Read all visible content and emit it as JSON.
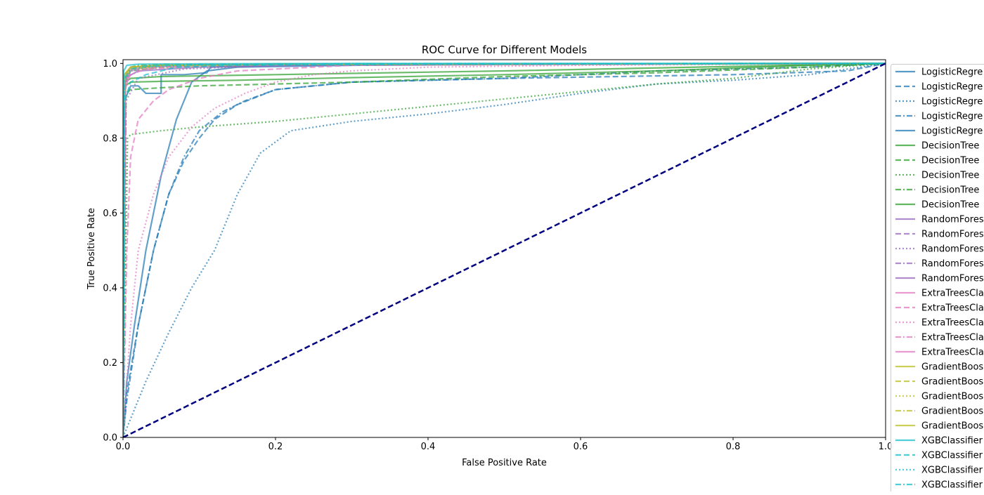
{
  "chart_data": {
    "type": "line",
    "title": "ROC Curve for Different Models",
    "xlabel": "False Positive Rate",
    "ylabel": "True Positive Rate",
    "xlim": [
      0,
      1
    ],
    "ylim": [
      0,
      1.01
    ],
    "xticks": [
      "0.0",
      "0.2",
      "0.4",
      "0.6",
      "0.8",
      "1.0"
    ],
    "yticks": [
      "0.0",
      "0.2",
      "0.4",
      "0.6",
      "0.8",
      "1.0"
    ],
    "grid": false,
    "legend_position": "outside-right",
    "colors": {
      "LogisticRegression": "#1f77b4",
      "DecisionTree": "#2ca02c",
      "RandomForest": "#9467bd",
      "ExtraTrees": "#e377c2",
      "GradientBoosting": "#bcbd22",
      "XGBClassifier": "#17becf",
      "diagonal": "#000080"
    },
    "diagonal": {
      "x": [
        0,
        1
      ],
      "y": [
        0,
        1
      ],
      "style": "dashed"
    },
    "series": [
      {
        "legend": "LogisticRegre",
        "model": "LogisticRegression",
        "style": "solid",
        "x": [
          0,
          0.005,
          0.015,
          0.03,
          0.05,
          0.07,
          0.09,
          0.11,
          0.15,
          0.3,
          0.6,
          1.0
        ],
        "y": [
          0,
          0.15,
          0.3,
          0.5,
          0.7,
          0.85,
          0.95,
          0.98,
          0.99,
          0.995,
          0.998,
          1.0
        ]
      },
      {
        "legend": "LogisticRegre",
        "model": "LogisticRegression",
        "style": "dashed",
        "x": [
          0,
          0.005,
          0.02,
          0.04,
          0.06,
          0.08,
          0.1,
          0.12,
          0.15,
          0.2,
          0.3,
          0.5,
          0.8,
          0.95,
          1.0
        ],
        "y": [
          0,
          0.12,
          0.3,
          0.5,
          0.65,
          0.74,
          0.8,
          0.85,
          0.89,
          0.93,
          0.95,
          0.96,
          0.97,
          0.98,
          1.0
        ]
      },
      {
        "legend": "LogisticRegre",
        "model": "LogisticRegression",
        "style": "dotted",
        "x": [
          0,
          0.01,
          0.03,
          0.06,
          0.09,
          0.12,
          0.15,
          0.18,
          0.22,
          0.3,
          0.4,
          0.5,
          0.6,
          0.7,
          0.8,
          0.9,
          1.0
        ],
        "y": [
          0,
          0.05,
          0.15,
          0.28,
          0.4,
          0.5,
          0.65,
          0.76,
          0.82,
          0.845,
          0.865,
          0.89,
          0.92,
          0.945,
          0.955,
          0.97,
          1.0
        ]
      },
      {
        "legend": "LogisticRegre",
        "model": "LogisticRegression",
        "style": "dashdot",
        "x": [
          0,
          0.005,
          0.02,
          0.04,
          0.06,
          0.08,
          0.1,
          0.13,
          0.16,
          0.2,
          0.3,
          0.5,
          0.7,
          0.9,
          1.0
        ],
        "y": [
          0,
          0.1,
          0.3,
          0.5,
          0.65,
          0.75,
          0.82,
          0.87,
          0.9,
          0.93,
          0.95,
          0.96,
          0.98,
          0.99,
          1.0
        ]
      },
      {
        "legend": "LogisticRegre",
        "model": "LogisticRegression",
        "style": "solid",
        "x": [
          0,
          0.002,
          0.01,
          0.02,
          0.03,
          0.05,
          0.05,
          0.08,
          0.11,
          0.115,
          0.2,
          0.5,
          1.0
        ],
        "y": [
          0,
          0.9,
          0.94,
          0.94,
          0.92,
          0.92,
          0.97,
          0.97,
          0.975,
          0.99,
          0.995,
          0.998,
          1.0
        ]
      },
      {
        "legend": "DecisionTree",
        "model": "DecisionTree",
        "style": "solid",
        "x": [
          0,
          0.003,
          0.01,
          0.05,
          0.15,
          0.3,
          0.5,
          0.7,
          0.9,
          1.0
        ],
        "y": [
          0,
          0.94,
          0.95,
          0.952,
          0.955,
          0.962,
          0.97,
          0.98,
          0.995,
          1.0
        ]
      },
      {
        "legend": "DecisionTree",
        "model": "DecisionTree",
        "style": "dashed",
        "x": [
          0,
          0.004,
          0.01,
          0.05,
          0.1,
          0.3,
          0.5,
          0.7,
          0.9,
          1.0
        ],
        "y": [
          0,
          0.92,
          0.93,
          0.935,
          0.94,
          0.95,
          0.965,
          0.975,
          0.99,
          1.0
        ]
      },
      {
        "legend": "DecisionTree",
        "model": "DecisionTree",
        "style": "dotted",
        "x": [
          0,
          0.006,
          0.01,
          0.05,
          0.1,
          0.2,
          0.3,
          0.4,
          0.5,
          0.6,
          0.7,
          0.8,
          0.9,
          1.0
        ],
        "y": [
          0,
          0.8,
          0.81,
          0.82,
          0.83,
          0.845,
          0.865,
          0.885,
          0.905,
          0.925,
          0.945,
          0.96,
          0.985,
          1.0
        ]
      },
      {
        "legend": "DecisionTree",
        "model": "DecisionTree",
        "style": "dashdot",
        "x": [
          0,
          0.002,
          0.005,
          0.01,
          0.02,
          0.05,
          0.2,
          0.5,
          1.0
        ],
        "y": [
          0,
          0.9,
          0.97,
          0.99,
          0.995,
          0.997,
          0.998,
          0.999,
          1.0
        ]
      },
      {
        "legend": "DecisionTree",
        "model": "DecisionTree",
        "style": "solid",
        "x": [
          0,
          0.003,
          0.01,
          0.05,
          0.2,
          0.5,
          1.0
        ],
        "y": [
          0,
          0.95,
          0.96,
          0.965,
          0.97,
          0.98,
          1.0
        ]
      },
      {
        "legend": "RandomFores",
        "model": "RandomForest",
        "style": "solid",
        "x": [
          0,
          0.002,
          0.01,
          0.05,
          0.2,
          0.5,
          1.0
        ],
        "y": [
          0,
          0.97,
          0.99,
          0.995,
          0.998,
          0.999,
          1.0
        ]
      },
      {
        "legend": "RandomFores",
        "model": "RandomForest",
        "style": "dashed",
        "x": [
          0,
          0.003,
          0.01,
          0.05,
          0.2,
          0.5,
          1.0
        ],
        "y": [
          0,
          0.95,
          0.98,
          0.99,
          0.995,
          0.998,
          1.0
        ]
      },
      {
        "legend": "RandomFores",
        "model": "RandomForest",
        "style": "dotted",
        "x": [
          0,
          0.004,
          0.02,
          0.08,
          0.2,
          0.5,
          1.0
        ],
        "y": [
          0,
          0.9,
          0.96,
          0.985,
          0.995,
          0.998,
          1.0
        ]
      },
      {
        "legend": "RandomFores",
        "model": "RandomForest",
        "style": "dashdot",
        "x": [
          0,
          0.002,
          0.01,
          0.05,
          0.2,
          1.0
        ],
        "y": [
          0,
          0.96,
          0.985,
          0.995,
          0.998,
          1.0
        ]
      },
      {
        "legend": "RandomFores",
        "model": "RandomForest",
        "style": "solid",
        "x": [
          0,
          0.002,
          0.02,
          0.1,
          0.3,
          1.0
        ],
        "y": [
          0,
          0.96,
          0.98,
          0.99,
          0.997,
          1.0
        ]
      },
      {
        "legend": "ExtraTreesCla",
        "model": "ExtraTrees",
        "style": "solid",
        "x": [
          0,
          0.003,
          0.01,
          0.03,
          0.1,
          0.3,
          1.0
        ],
        "y": [
          0,
          0.95,
          0.98,
          0.99,
          0.995,
          0.998,
          1.0
        ]
      },
      {
        "legend": "ExtraTreesCla",
        "model": "ExtraTrees",
        "style": "dashed",
        "x": [
          0,
          0.005,
          0.01,
          0.02,
          0.04,
          0.06,
          0.1,
          0.15,
          0.3,
          1.0
        ],
        "y": [
          0,
          0.5,
          0.75,
          0.85,
          0.9,
          0.93,
          0.96,
          0.98,
          0.995,
          1.0
        ]
      },
      {
        "legend": "ExtraTreesCla",
        "model": "ExtraTrees",
        "style": "dotted",
        "x": [
          0,
          0.01,
          0.02,
          0.04,
          0.06,
          0.09,
          0.12,
          0.16,
          0.2,
          0.25,
          0.3,
          0.4,
          0.6,
          1.0
        ],
        "y": [
          0,
          0.3,
          0.5,
          0.65,
          0.75,
          0.83,
          0.88,
          0.92,
          0.95,
          0.97,
          0.98,
          0.99,
          0.995,
          1.0
        ]
      },
      {
        "legend": "ExtraTreesCla",
        "model": "ExtraTrees",
        "style": "dashdot",
        "x": [
          0,
          0.003,
          0.01,
          0.03,
          0.1,
          0.3,
          1.0
        ],
        "y": [
          0,
          0.94,
          0.97,
          0.985,
          0.995,
          0.998,
          1.0
        ]
      },
      {
        "legend": "ExtraTreesCla",
        "model": "ExtraTrees",
        "style": "solid",
        "x": [
          0,
          0.003,
          0.01,
          0.03,
          0.1,
          0.3,
          1.0
        ],
        "y": [
          0,
          0.93,
          0.985,
          0.99,
          0.995,
          0.998,
          1.0
        ]
      },
      {
        "legend": "GradientBoos",
        "model": "GradientBoosting",
        "style": "solid",
        "x": [
          0,
          0.002,
          0.01,
          0.05,
          0.2,
          1.0
        ],
        "y": [
          0,
          0.97,
          0.99,
          0.995,
          0.998,
          1.0
        ]
      },
      {
        "legend": "GradientBoos",
        "model": "GradientBoosting",
        "style": "dashed",
        "x": [
          0,
          0.002,
          0.01,
          0.05,
          0.2,
          1.0
        ],
        "y": [
          0,
          0.96,
          0.985,
          0.995,
          0.998,
          1.0
        ]
      },
      {
        "legend": "GradientBoos",
        "model": "GradientBoosting",
        "style": "dotted",
        "x": [
          0,
          0.002,
          0.01,
          0.05,
          0.2,
          1.0
        ],
        "y": [
          0,
          0.95,
          0.98,
          0.99,
          0.997,
          1.0
        ]
      },
      {
        "legend": "GradientBoos",
        "model": "GradientBoosting",
        "style": "dashdot",
        "x": [
          0,
          0.002,
          0.01,
          0.05,
          0.2,
          1.0
        ],
        "y": [
          0,
          0.96,
          0.985,
          0.995,
          0.998,
          1.0
        ]
      },
      {
        "legend": "GradientBoos",
        "model": "GradientBoosting",
        "style": "solid",
        "x": [
          0,
          0.002,
          0.01,
          0.05,
          0.2,
          1.0
        ],
        "y": [
          0,
          0.97,
          0.99,
          0.996,
          0.998,
          1.0
        ]
      },
      {
        "legend": "XGBClassifier",
        "model": "XGBClassifier",
        "style": "solid",
        "x": [
          0,
          0.001,
          0.005,
          0.02,
          0.1,
          0.3,
          1.0
        ],
        "y": [
          0,
          0.98,
          0.995,
          0.998,
          0.999,
          1.0,
          1.0
        ]
      },
      {
        "legend": "XGBClassifier",
        "model": "XGBClassifier",
        "style": "dashed",
        "x": [
          0,
          0.002,
          0.01,
          0.03,
          0.07,
          0.15,
          0.4,
          1.0
        ],
        "y": [
          0,
          0.9,
          0.95,
          0.97,
          0.99,
          0.995,
          0.998,
          1.0
        ]
      },
      {
        "legend": "XGBClassifier",
        "model": "XGBClassifier",
        "style": "dotted",
        "x": [
          0,
          0.002,
          0.01,
          0.03,
          0.1,
          0.3,
          1.0
        ],
        "y": [
          0,
          0.95,
          0.98,
          0.99,
          0.996,
          0.999,
          1.0
        ]
      },
      {
        "legend": "XGBClassifier",
        "model": "XGBClassifier",
        "style": "dashdot",
        "x": [
          0,
          0.002,
          0.01,
          0.03,
          0.1,
          0.3,
          1.0
        ],
        "y": [
          0,
          0.96,
          0.985,
          0.993,
          0.997,
          0.999,
          1.0
        ]
      }
    ]
  }
}
